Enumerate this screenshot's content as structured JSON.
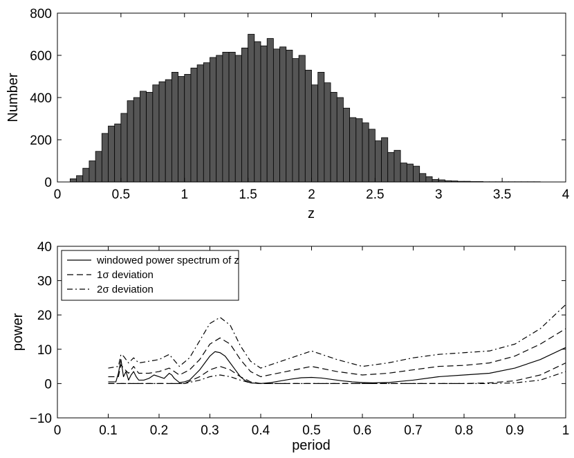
{
  "chart_data": [
    {
      "type": "bar",
      "xlabel": "z",
      "ylabel": "Number",
      "xlim": [
        0,
        4
      ],
      "ylim": [
        0,
        800
      ],
      "xticks": [
        "0",
        "0.5",
        "1",
        "1.5",
        "2",
        "2.5",
        "3",
        "3.5",
        "4"
      ],
      "yticks": [
        "0",
        "200",
        "400",
        "600",
        "800"
      ],
      "bin_width": 0.05,
      "bin_start": 0.05,
      "bar_color": "#555555",
      "values": [
        0,
        15,
        30,
        65,
        100,
        145,
        230,
        265,
        275,
        325,
        385,
        400,
        430,
        425,
        460,
        475,
        485,
        520,
        500,
        510,
        540,
        555,
        565,
        590,
        600,
        615,
        615,
        600,
        635,
        700,
        665,
        645,
        680,
        630,
        640,
        625,
        585,
        600,
        530,
        460,
        520,
        470,
        425,
        400,
        350,
        305,
        300,
        280,
        250,
        195,
        210,
        140,
        150,
        90,
        85,
        75,
        40,
        25,
        12,
        10,
        6,
        5,
        3,
        3,
        2,
        2,
        1,
        1,
        1,
        1,
        1,
        1,
        1,
        1,
        1,
        0,
        0,
        0,
        0
      ]
    },
    {
      "type": "line",
      "xlabel": "period",
      "ylabel": "power",
      "xlim": [
        0,
        1
      ],
      "ylim": [
        -10,
        40
      ],
      "xticks": [
        "0",
        "0.1",
        "0.2",
        "0.3",
        "0.4",
        "0.5",
        "0.6",
        "0.7",
        "0.8",
        "0.9",
        "1"
      ],
      "yticks": [
        "−10",
        "0",
        "10",
        "20",
        "30",
        "40"
      ],
      "legend_position": "top-left",
      "series": [
        {
          "name": "windowed power spectrum of z",
          "style": "solid",
          "x": [
            0.1,
            0.115,
            0.12,
            0.125,
            0.13,
            0.135,
            0.14,
            0.145,
            0.15,
            0.155,
            0.16,
            0.17,
            0.18,
            0.19,
            0.2,
            0.21,
            0.22,
            0.225,
            0.23,
            0.24,
            0.25,
            0.26,
            0.27,
            0.28,
            0.29,
            0.3,
            0.31,
            0.32,
            0.33,
            0.34,
            0.35,
            0.36,
            0.37,
            0.38,
            0.39,
            0.4,
            0.42,
            0.44,
            0.46,
            0.48,
            0.5,
            0.52,
            0.54,
            0.56,
            0.58,
            0.6,
            0.62,
            0.65,
            0.7,
            0.75,
            0.8,
            0.85,
            0.9,
            0.95,
            1.0
          ],
          "y": [
            0.5,
            0.5,
            3.0,
            7.0,
            2.0,
            3.5,
            1.0,
            2.5,
            3.5,
            2.0,
            1.0,
            1.0,
            1.5,
            2.5,
            2.0,
            1.5,
            3.0,
            2.5,
            1.5,
            0.3,
            0.5,
            1.0,
            2.5,
            4.0,
            6.0,
            8.0,
            9.3,
            9.0,
            8.0,
            6.0,
            4.0,
            2.0,
            0.8,
            0.2,
            0.1,
            0.0,
            0.3,
            0.8,
            1.3,
            1.7,
            1.8,
            1.6,
            1.2,
            0.8,
            0.5,
            0.3,
            0.2,
            0.3,
            1.0,
            2.0,
            2.5,
            3.0,
            4.5,
            7.0,
            10.5
          ]
        },
        {
          "name": "1σ deviation",
          "style": "dashed",
          "x": [
            0.1,
            0.12,
            0.125,
            0.13,
            0.14,
            0.15,
            0.16,
            0.18,
            0.2,
            0.22,
            0.24,
            0.26,
            0.28,
            0.3,
            0.32,
            0.34,
            0.36,
            0.38,
            0.4,
            0.45,
            0.5,
            0.55,
            0.6,
            0.65,
            0.7,
            0.75,
            0.8,
            0.85,
            0.9,
            0.95,
            1.0
          ],
          "y": [
            2.0,
            2.0,
            5.5,
            4.5,
            3.0,
            5.0,
            3.0,
            3.0,
            3.5,
            4.5,
            2.5,
            4.0,
            7.0,
            11.5,
            13.3,
            11.5,
            7.0,
            3.5,
            2.0,
            3.5,
            5.0,
            3.5,
            2.5,
            3.0,
            4.0,
            5.0,
            5.3,
            6.0,
            8.0,
            11.5,
            16.0
          ]
        },
        {
          "name": "1σ deviation",
          "style": "dashed",
          "x": [
            0.1,
            0.15,
            0.2,
            0.25,
            0.28,
            0.3,
            0.32,
            0.34,
            0.36,
            0.38,
            0.4,
            0.45,
            0.5,
            0.55,
            0.6,
            0.65,
            0.7,
            0.75,
            0.8,
            0.85,
            0.9,
            0.95,
            1.0
          ],
          "y": [
            0.0,
            0.0,
            0.0,
            0.0,
            2.0,
            4.0,
            5.0,
            4.0,
            2.0,
            0.5,
            0.0,
            0.0,
            0.0,
            0.0,
            0.0,
            0.0,
            0.0,
            0.0,
            0.0,
            0.2,
            0.8,
            2.5,
            6.0
          ]
        },
        {
          "name": "2σ deviation",
          "style": "dashdot",
          "x": [
            0.1,
            0.12,
            0.125,
            0.13,
            0.14,
            0.15,
            0.16,
            0.18,
            0.2,
            0.22,
            0.24,
            0.26,
            0.28,
            0.3,
            0.32,
            0.34,
            0.36,
            0.38,
            0.4,
            0.45,
            0.5,
            0.55,
            0.6,
            0.65,
            0.7,
            0.75,
            0.8,
            0.85,
            0.9,
            0.95,
            1.0
          ],
          "y": [
            4.5,
            5.0,
            8.5,
            8.0,
            6.0,
            7.5,
            6.0,
            6.5,
            7.0,
            8.5,
            5.0,
            7.5,
            12.5,
            17.5,
            19.3,
            17.0,
            11.0,
            6.5,
            4.5,
            7.0,
            9.5,
            7.0,
            5.0,
            6.0,
            7.5,
            8.5,
            9.0,
            9.5,
            11.5,
            16.0,
            23.0
          ]
        },
        {
          "name": "2σ deviation",
          "style": "dashdot",
          "x": [
            0.1,
            0.15,
            0.2,
            0.25,
            0.28,
            0.3,
            0.32,
            0.34,
            0.36,
            0.38,
            0.4,
            0.45,
            0.5,
            0.55,
            0.6,
            0.65,
            0.7,
            0.75,
            0.8,
            0.85,
            0.9,
            0.95,
            1.0
          ],
          "y": [
            0.0,
            0.0,
            0.0,
            0.0,
            1.0,
            2.0,
            2.5,
            2.0,
            1.0,
            0.2,
            0.0,
            0.0,
            0.0,
            0.0,
            0.0,
            0.0,
            0.0,
            0.0,
            0.0,
            0.0,
            0.2,
            1.0,
            3.5
          ]
        }
      ],
      "legend": [
        "windowed power spectrum of z",
        "1σ deviation",
        "2σ deviation"
      ]
    }
  ]
}
